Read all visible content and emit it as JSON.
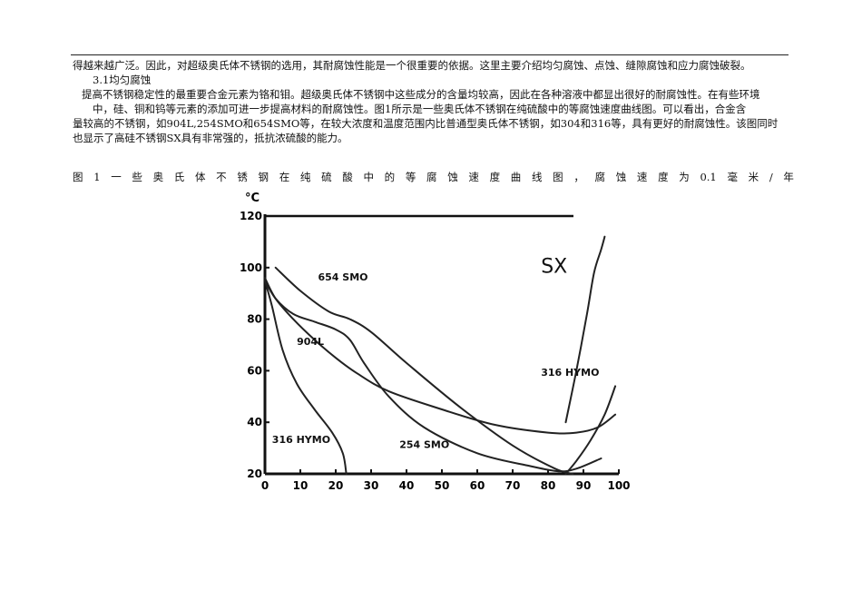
{
  "document": {
    "lines": [
      "得越来越广泛。因此，对超级奥氏体不锈钢的选用，其耐腐蚀性能是一个很重要的依据。这里主要介绍均匀腐蚀、点蚀、缝隙腐蚀和应力腐蚀破裂。",
      "3.1均匀腐蚀",
      "提高不锈钢稳定性的最重要合金元素为铬和钼。超级奥氏体不锈钢中这些成分的含量均较高，因此在各种溶液中都显出很好的耐腐蚀性。在有些环境",
      "中，硅、铜和钨等元素的添加可进一步提高材料的耐腐蚀性。图1所示是一些奥氏体不锈钢在纯硫酸中的等腐蚀速度曲线图。可以看出，合金含",
      "量较高的不锈钢，如904L,254SMO和654SMO等，在较大浓度和温度范围内比普通型奥氏体不锈钢，如304和316等，具有更好的耐腐蚀性。该图同时",
      "也显示了高硅不锈钢SX具有非常强的，抵抗浓硫酸的能力。"
    ],
    "caption": "图1一些奥氏体不锈钢在纯硫酸中的等腐蚀速度曲线图，腐蚀速度为0.1毫米/年"
  },
  "chart_data": {
    "type": "line",
    "title": "",
    "xlabel": "",
    "ylabel": "°C",
    "xlim": [
      0,
      100
    ],
    "ylim": [
      20,
      120
    ],
    "xticks": [
      "0",
      "10",
      "20",
      "30",
      "40",
      "50",
      "60",
      "70",
      "80",
      "90",
      "100"
    ],
    "yticks": [
      "20",
      "40",
      "60",
      "80",
      "100",
      "120"
    ],
    "grid": false,
    "labels": [
      {
        "text": "654 SMO",
        "x": 15,
        "y": 95
      },
      {
        "text": "904L",
        "x": 9,
        "y": 70
      },
      {
        "text": "SX",
        "x": 78,
        "y": 98
      },
      {
        "text": "316 HYMO",
        "x": 78,
        "y": 58
      },
      {
        "text": "316 HYMO",
        "x": 2,
        "y": 32
      },
      {
        "text": "254 SMO",
        "x": 38,
        "y": 30
      }
    ],
    "series": [
      {
        "name": "654 SMO",
        "x": [
          3,
          10,
          18,
          24,
          30,
          40,
          55,
          70,
          82,
          87
        ],
        "y": [
          100,
          91,
          83,
          80,
          75,
          63,
          46,
          31,
          22,
          20
        ]
      },
      {
        "name": "904L",
        "x": [
          0,
          3,
          8,
          14,
          20,
          26,
          35,
          50,
          65,
          80,
          88,
          94,
          99
        ],
        "y": [
          96,
          88,
          80,
          72,
          65,
          59,
          52,
          45,
          39,
          36,
          36,
          38,
          43
        ]
      },
      {
        "name": "254 SMO",
        "x": [
          0,
          3,
          8,
          14,
          20,
          24,
          28,
          35,
          45,
          60,
          75,
          83,
          88,
          95
        ],
        "y": [
          95,
          88,
          82,
          79,
          76,
          72,
          63,
          50,
          38,
          28,
          23,
          21,
          22,
          26
        ]
      },
      {
        "name": "316 HYMO (low)",
        "x": [
          0,
          2,
          5,
          9,
          14,
          19,
          22,
          23
        ],
        "y": [
          95,
          85,
          68,
          55,
          45,
          36,
          28,
          20
        ]
      },
      {
        "name": "316 HYMO (high)",
        "x": [
          85,
          88,
          92,
          96,
          99
        ],
        "y": [
          20,
          25,
          33,
          43,
          54
        ]
      },
      {
        "name": "SX",
        "x": [
          85,
          88,
          91,
          93,
          95,
          96
        ],
        "y": [
          40,
          60,
          82,
          98,
          107,
          112
        ]
      }
    ]
  }
}
